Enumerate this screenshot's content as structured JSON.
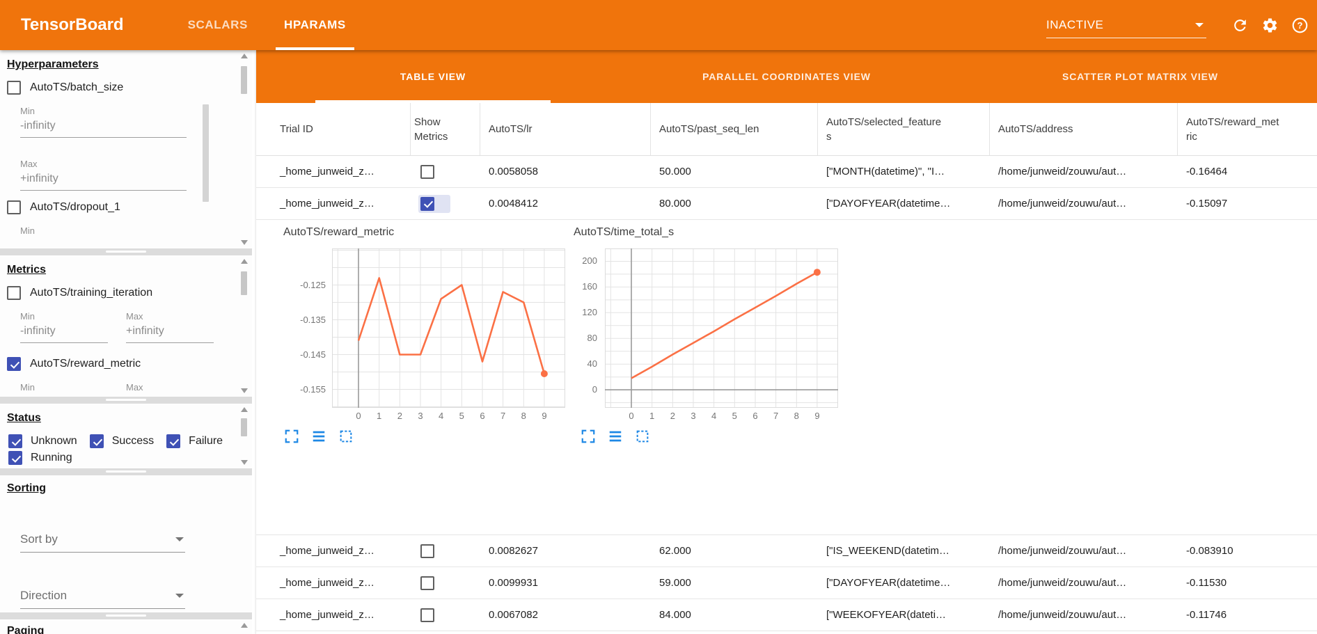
{
  "header": {
    "app_title": "TensorBoard",
    "nav_tabs": [
      {
        "label": "SCALARS",
        "active": false
      },
      {
        "label": "HPARAMS",
        "active": true
      }
    ],
    "run_selector": {
      "value": "INACTIVE"
    },
    "icons": [
      "refresh-icon",
      "settings-gear-icon",
      "help-icon"
    ],
    "accent_color": "#f0740c"
  },
  "sidebar": {
    "hyperparameters": {
      "title": "Hyperparameters",
      "item1": {
        "label": "AutoTS/batch_size",
        "checked": false
      },
      "min_label": "Min",
      "min_value": "-infinity",
      "max_label": "Max",
      "max_value": "+infinity",
      "item2": {
        "label": "AutoTS/dropout_1",
        "checked": false
      },
      "trailing_label": "Min"
    },
    "metrics": {
      "title": "Metrics",
      "item1": {
        "label": "AutoTS/training_iteration",
        "checked": false
      },
      "min_label": "Min",
      "min_value": "-infinity",
      "max_label": "Max",
      "max_value": "+infinity",
      "item2": {
        "label": "AutoTS/reward_metric",
        "checked": true
      },
      "trailing_min": "Min",
      "trailing_max": "Max"
    },
    "status": {
      "title": "Status",
      "items": [
        {
          "label": "Unknown",
          "checked": true
        },
        {
          "label": "Success",
          "checked": true
        },
        {
          "label": "Failure",
          "checked": true
        },
        {
          "label": "Running",
          "checked": true
        }
      ]
    },
    "sorting": {
      "title": "Sorting",
      "sort_by_placeholder": "Sort by",
      "direction_placeholder": "Direction"
    },
    "paging": {
      "title": "Paging"
    },
    "checkbox_color": "#3f51b5"
  },
  "main": {
    "view_tabs": [
      {
        "label": "TABLE VIEW",
        "active": true
      },
      {
        "label": "PARALLEL COORDINATES VIEW",
        "active": false
      },
      {
        "label": "SCATTER PLOT MATRIX VIEW",
        "active": false
      }
    ],
    "table": {
      "columns": [
        "Trial ID",
        "Show Metrics",
        "AutoTS/lr",
        "AutoTS/past_seq_len",
        "AutoTS/selected_features",
        "AutoTS/address",
        "AutoTS/reward_metric"
      ],
      "rows_top": [
        {
          "trial_id": "_home_junweid_z…",
          "show_metrics": false,
          "lr": "0.0058058",
          "past_seq_len": "50.000",
          "selected_features": "[\"MONTH(datetime)\", \"I…",
          "address": "/home/junweid/zouwu/aut…",
          "reward_metric": "-0.16464"
        },
        {
          "trial_id": "_home_junweid_z…",
          "show_metrics": true,
          "lr": "0.0048412",
          "past_seq_len": "80.000",
          "selected_features": "[\"DAYOFYEAR(datetime…",
          "address": "/home/junweid/zouwu/aut…",
          "reward_metric": "-0.15097"
        }
      ],
      "rows_bottom": [
        {
          "trial_id": "_home_junweid_z…",
          "show_metrics": false,
          "lr": "0.0082627",
          "past_seq_len": "62.000",
          "selected_features": "[\"IS_WEEKEND(datetim…",
          "address": "/home/junweid/zouwu/aut…",
          "reward_metric": "-0.083910"
        },
        {
          "trial_id": "_home_junweid_z…",
          "show_metrics": false,
          "lr": "0.0099931",
          "past_seq_len": "59.000",
          "selected_features": "[\"DAYOFYEAR(datetime…",
          "address": "/home/junweid/zouwu/aut…",
          "reward_metric": "-0.11530"
        },
        {
          "trial_id": "_home_junweid_z…",
          "show_metrics": false,
          "lr": "0.0067082",
          "past_seq_len": "84.000",
          "selected_features": "[\"WEEKOFYEAR(dateti…",
          "address": "/home/junweid/zouwu/aut…",
          "reward_metric": "-0.11746"
        }
      ]
    },
    "chart_toolbar_icons": [
      "maximize-icon",
      "rows-icon",
      "marquee-select-icon"
    ],
    "chart_icon_color": "#1e88e5"
  },
  "chart_data": [
    {
      "type": "line",
      "title": "AutoTS/reward_metric",
      "x": [
        0,
        1,
        2,
        3,
        4,
        5,
        6,
        7,
        8,
        9
      ],
      "values": [
        -0.141,
        -0.123,
        -0.145,
        -0.145,
        -0.129,
        -0.125,
        -0.147,
        -0.127,
        -0.13,
        -0.1505
      ],
      "xticks": [
        "0",
        "1",
        "2",
        "3",
        "4",
        "5",
        "6",
        "7",
        "8",
        "9"
      ],
      "yticks": [
        -0.125,
        -0.135,
        -0.145,
        -0.155
      ],
      "ytick_labels": [
        "-0.125",
        "-0.135",
        "-0.145",
        "-0.155"
      ],
      "ylim": [
        -0.1603,
        -0.1145
      ],
      "xlabel": "",
      "ylabel": "",
      "grid": true,
      "legend": "none",
      "line_color": "#fb7045",
      "end_marker": true
    },
    {
      "type": "line",
      "title": "AutoTS/time_total_s",
      "x": [
        0,
        1,
        2,
        3,
        4,
        5,
        6,
        7,
        8,
        9
      ],
      "values": [
        18,
        36,
        55,
        73,
        91,
        110,
        128,
        146,
        165,
        183
      ],
      "xticks": [
        "0",
        "1",
        "2",
        "3",
        "4",
        "5",
        "6",
        "7",
        "8",
        "9"
      ],
      "yticks": [
        200,
        160,
        120,
        80,
        40,
        0
      ],
      "ytick_labels": [
        "200",
        "160",
        "120",
        "80",
        "40",
        "0"
      ],
      "ylim": [
        -28,
        220
      ],
      "xlabel": "",
      "ylabel": "",
      "grid": true,
      "legend": "none",
      "line_color": "#fb7045",
      "end_marker": true
    }
  ]
}
